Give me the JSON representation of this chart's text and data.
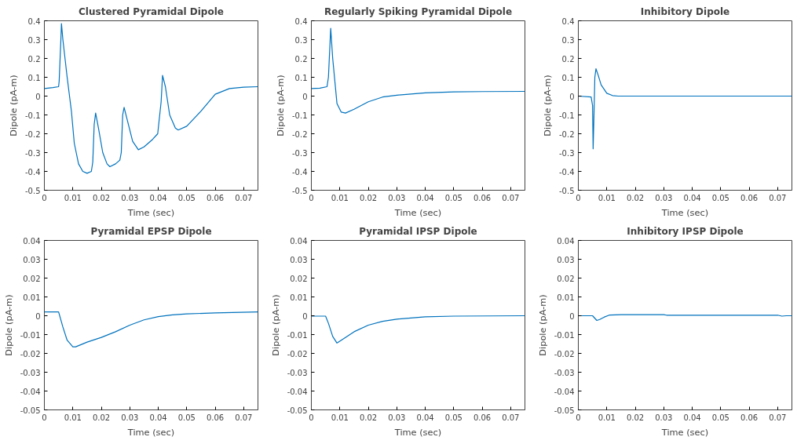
{
  "chart_data": [
    {
      "type": "line",
      "title": "Clustered Pyramidal Dipole",
      "xlabel": "Time (sec)",
      "ylabel": "Dipole (pA-m)",
      "xlim": [
        0,
        0.075
      ],
      "xticks": [
        0,
        0.01,
        0.02,
        0.03,
        0.04,
        0.05,
        0.06,
        0.07
      ],
      "ylim": [
        -0.5,
        0.4
      ],
      "yticks": [
        -0.5,
        -0.4,
        -0.3,
        -0.2,
        -0.1,
        0,
        0.1,
        0.2,
        0.3,
        0.4
      ],
      "grid": false,
      "x": [
        0,
        0.003,
        0.005,
        0.0052,
        0.0058,
        0.006,
        0.0065,
        0.008,
        0.0095,
        0.0105,
        0.012,
        0.0135,
        0.015,
        0.0165,
        0.017,
        0.0175,
        0.018,
        0.019,
        0.0205,
        0.022,
        0.023,
        0.025,
        0.0265,
        0.027,
        0.0275,
        0.028,
        0.029,
        0.031,
        0.033,
        0.035,
        0.038,
        0.0398,
        0.041,
        0.0415,
        0.0425,
        0.044,
        0.046,
        0.047,
        0.05,
        0.055,
        0.06,
        0.065,
        0.07,
        0.075
      ],
      "series": [
        {
          "color": "#0072bd",
          "values": [
            0.04,
            0.045,
            0.05,
            0.08,
            0.3,
            0.385,
            0.3,
            0.1,
            -0.08,
            -0.25,
            -0.36,
            -0.4,
            -0.41,
            -0.4,
            -0.35,
            -0.15,
            -0.09,
            -0.17,
            -0.3,
            -0.36,
            -0.375,
            -0.36,
            -0.34,
            -0.3,
            -0.1,
            -0.06,
            -0.12,
            -0.24,
            -0.285,
            -0.27,
            -0.23,
            -0.2,
            -0.03,
            0.11,
            0.05,
            -0.1,
            -0.17,
            -0.18,
            -0.16,
            -0.08,
            0.01,
            0.04,
            0.047,
            0.05
          ]
        }
      ]
    },
    {
      "type": "line",
      "title": "Regularly Spiking Pyramidal Dipole",
      "xlabel": "Time (sec)",
      "ylabel": "Dipole (pA-m)",
      "xlim": [
        0,
        0.075
      ],
      "xticks": [
        0,
        0.01,
        0.02,
        0.03,
        0.04,
        0.05,
        0.06,
        0.07
      ],
      "ylim": [
        -0.5,
        0.4
      ],
      "yticks": [
        -0.5,
        -0.4,
        -0.3,
        -0.2,
        -0.1,
        0,
        0.1,
        0.2,
        0.3,
        0.4
      ],
      "grid": false,
      "x": [
        0,
        0.003,
        0.0055,
        0.006,
        0.0068,
        0.0075,
        0.009,
        0.0105,
        0.012,
        0.015,
        0.02,
        0.025,
        0.03,
        0.04,
        0.05,
        0.06,
        0.075
      ],
      "series": [
        {
          "color": "#0072bd",
          "values": [
            0.04,
            0.042,
            0.05,
            0.1,
            0.36,
            0.2,
            -0.04,
            -0.085,
            -0.09,
            -0.07,
            -0.03,
            -0.005,
            0.005,
            0.017,
            0.022,
            0.024,
            0.025
          ]
        }
      ]
    },
    {
      "type": "line",
      "title": "Inhibitory Dipole",
      "xlabel": "Time (sec)",
      "ylabel": "Dipole (pA-m)",
      "xlim": [
        0,
        0.075
      ],
      "xticks": [
        0,
        0.01,
        0.02,
        0.03,
        0.04,
        0.05,
        0.06,
        0.07
      ],
      "ylim": [
        -0.5,
        0.4
      ],
      "yticks": [
        -0.5,
        -0.4,
        -0.3,
        -0.2,
        -0.1,
        0,
        0.1,
        0.2,
        0.3,
        0.4
      ],
      "grid": false,
      "x": [
        0,
        0.0045,
        0.005,
        0.0052,
        0.0055,
        0.0058,
        0.0062,
        0.007,
        0.008,
        0.01,
        0.012,
        0.014,
        0.075
      ],
      "series": [
        {
          "color": "#0072bd",
          "values": [
            0,
            -0.005,
            -0.05,
            -0.28,
            -0.1,
            0.1,
            0.145,
            0.11,
            0.06,
            0.015,
            0.003,
            0,
            0
          ]
        }
      ]
    },
    {
      "type": "line",
      "title": "Pyramidal EPSP Dipole",
      "xlabel": "Time (sec)",
      "ylabel": "Dipole (pA-m)",
      "xlim": [
        0,
        0.075
      ],
      "xticks": [
        0,
        0.01,
        0.02,
        0.03,
        0.04,
        0.05,
        0.06,
        0.07
      ],
      "ylim": [
        -0.05,
        0.04
      ],
      "yticks": [
        -0.05,
        -0.04,
        -0.03,
        -0.02,
        -0.01,
        0,
        0.01,
        0.02,
        0.03,
        0.04
      ],
      "grid": false,
      "x": [
        0,
        0.005,
        0.0065,
        0.008,
        0.01,
        0.011,
        0.015,
        0.02,
        0.025,
        0.03,
        0.035,
        0.04,
        0.045,
        0.05,
        0.06,
        0.075
      ],
      "series": [
        {
          "color": "#0072bd",
          "values": [
            0.002,
            0.002,
            -0.006,
            -0.013,
            -0.0165,
            -0.0165,
            -0.014,
            -0.0115,
            -0.0085,
            -0.005,
            -0.0022,
            -0.0005,
            0.0005,
            0.001,
            0.0015,
            0.002
          ]
        }
      ]
    },
    {
      "type": "line",
      "title": "Pyramidal IPSP Dipole",
      "xlabel": "Time (sec)",
      "ylabel": "Dipole (pA-m)",
      "xlim": [
        0,
        0.075
      ],
      "xticks": [
        0,
        0.01,
        0.02,
        0.03,
        0.04,
        0.05,
        0.06,
        0.07
      ],
      "ylim": [
        -0.05,
        0.04
      ],
      "yticks": [
        -0.05,
        -0.04,
        -0.03,
        -0.02,
        -0.01,
        0,
        0.01,
        0.02,
        0.03,
        0.04
      ],
      "grid": false,
      "x": [
        0,
        0.005,
        0.006,
        0.0075,
        0.009,
        0.0105,
        0.015,
        0.02,
        0.025,
        0.03,
        0.04,
        0.05,
        0.075
      ],
      "series": [
        {
          "color": "#0072bd",
          "values": [
            -0.0002,
            -0.0002,
            -0.004,
            -0.011,
            -0.0145,
            -0.013,
            -0.0085,
            -0.005,
            -0.003,
            -0.0018,
            -0.0006,
            -0.0002,
            0
          ]
        }
      ]
    },
    {
      "type": "line",
      "title": "Inhibitory IPSP Dipole",
      "xlabel": "Time (sec)",
      "ylabel": "Dipole (pA-m)",
      "xlim": [
        0,
        0.075
      ],
      "xticks": [
        0,
        0.01,
        0.02,
        0.03,
        0.04,
        0.05,
        0.06,
        0.07
      ],
      "ylim": [
        -0.05,
        0.04
      ],
      "yticks": [
        -0.05,
        -0.04,
        -0.03,
        -0.02,
        -0.01,
        0,
        0.01,
        0.02,
        0.03,
        0.04
      ],
      "grid": false,
      "x": [
        0,
        0.005,
        0.0065,
        0.0075,
        0.009,
        0.011,
        0.015,
        0.03,
        0.031,
        0.07,
        0.0715,
        0.073,
        0.075
      ],
      "series": [
        {
          "color": "#0072bd",
          "values": [
            0,
            0,
            -0.0025,
            -0.002,
            -0.0008,
            0.0004,
            0.0006,
            0.0006,
            0.0003,
            0.0003,
            -0.0002,
            0,
            0
          ]
        }
      ]
    }
  ]
}
